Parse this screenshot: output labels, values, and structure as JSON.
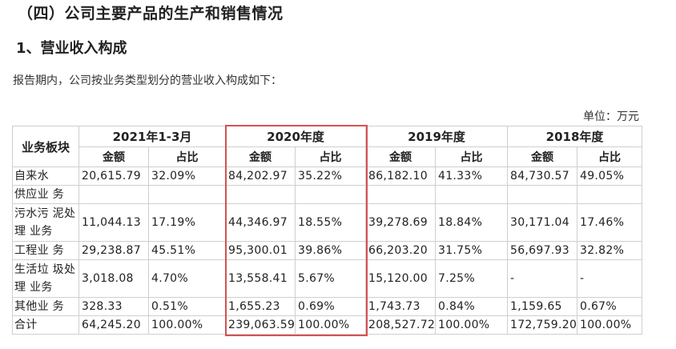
{
  "section_title": "（四）公司主要产品的生产和销售情况",
  "subsection_title": "1、营业收入构成",
  "intro_text": "报告期内，公司按业务类型划分的营业收入构成如下：",
  "unit_label": "单位：万元",
  "table": {
    "segment_header": "业务板块",
    "periods": [
      "2021年1-3月",
      "2020年度",
      "2019年度",
      "2018年度"
    ],
    "amount_label": "金额",
    "ratio_label": "占比",
    "rows": [
      {
        "segment": "自来水",
        "cells": [
          "20,615.79",
          "32.09%",
          "84,202.97",
          "35.22%",
          "86,182.10",
          "41.33%",
          "84,730.57",
          "49.05%"
        ]
      },
      {
        "segment": "供应业 务",
        "cells": [
          "",
          "",
          "",
          "",
          "",
          "",
          "",
          ""
        ]
      },
      {
        "segment": "污水污 泥处理 业务",
        "cells": [
          "11,044.13",
          "17.19%",
          "44,346.97",
          "18.55%",
          "39,278.69",
          "18.84%",
          "30,171.04",
          "17.46%"
        ]
      },
      {
        "segment": "工程业 务",
        "cells": [
          "29,238.87",
          "45.51%",
          "95,300.01",
          "39.86%",
          "66,203.20",
          "31.75%",
          "56,697.93",
          "32.82%"
        ]
      },
      {
        "segment": "生活垃 圾处理 业务",
        "cells": [
          "3,018.08",
          "4.70%",
          "13,558.41",
          "5.67%",
          "15,120.00",
          "7.25%",
          "-",
          "-"
        ]
      },
      {
        "segment": "其他业 务",
        "cells": [
          "328.33",
          "0.51%",
          "1,655.23",
          "0.69%",
          "1,743.73",
          "0.84%",
          "1,159.65",
          "0.67%"
        ]
      },
      {
        "segment": "合计",
        "cells": [
          "64,245.20",
          "100.00%",
          "239,063.59",
          "100.00%",
          "208,527.72",
          "100.00%",
          "172,759.20",
          "100.00%"
        ]
      }
    ]
  },
  "highlight_color": "#d95050"
}
